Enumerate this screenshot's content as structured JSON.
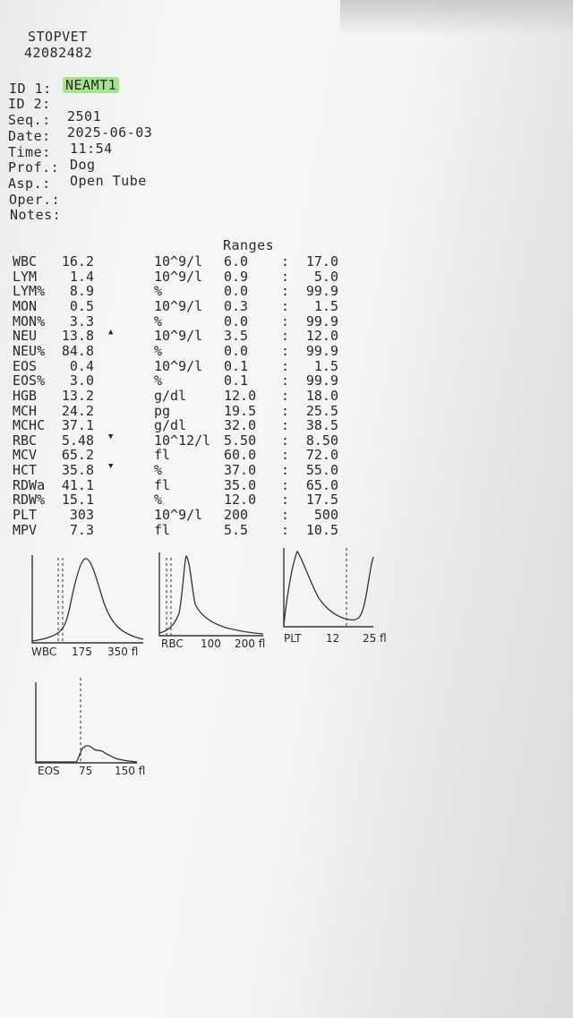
{
  "header": {
    "clinic": "STOPVET",
    "serial": "42082482"
  },
  "patient": [
    {
      "label": "ID 1:",
      "value": "NEAMT1"
    },
    {
      "label": "ID 2:",
      "value": ""
    },
    {
      "label": "Seq.:",
      "value": "2501"
    },
    {
      "label": "Date:",
      "value": "2025-06-03"
    },
    {
      "label": "Time:",
      "value": "11:54"
    },
    {
      "label": "Prof.:",
      "value": "Dog"
    },
    {
      "label": "Asp.:",
      "value": "Open Tube"
    },
    {
      "label": "Oper.:",
      "value": ""
    },
    {
      "label": "Notes:",
      "value": ""
    }
  ],
  "ranges_heading": "Ranges",
  "results": [
    {
      "param": "WBC",
      "value": "16.2",
      "flag": "",
      "unit": "10^9/l",
      "low": "6.0",
      "sep": ":",
      "high": "17.0"
    },
    {
      "param": "LYM",
      "value": "1.4",
      "flag": "",
      "unit": "10^9/l",
      "low": "0.9",
      "sep": ":",
      "high": "5.0"
    },
    {
      "param": "LYM%",
      "value": "8.9",
      "flag": "",
      "unit": "%",
      "low": "0.0",
      "sep": ":",
      "high": "99.9"
    },
    {
      "param": "MON",
      "value": "0.5",
      "flag": "",
      "unit": "10^9/l",
      "low": "0.3",
      "sep": ":",
      "high": "1.5"
    },
    {
      "param": "MON%",
      "value": "3.3",
      "flag": "",
      "unit": "%",
      "low": "0.0",
      "sep": ":",
      "high": "99.9"
    },
    {
      "param": "NEU",
      "value": "13.8",
      "flag": "▲",
      "unit": "10^9/l",
      "low": "3.5",
      "sep": ":",
      "high": "12.0"
    },
    {
      "param": "NEU%",
      "value": "84.8",
      "flag": "",
      "unit": "%",
      "low": "0.0",
      "sep": ":",
      "high": "99.9"
    },
    {
      "param": "EOS",
      "value": "0.4",
      "flag": "",
      "unit": "10^9/l",
      "low": "0.1",
      "sep": ":",
      "high": "1.5"
    },
    {
      "param": "EOS%",
      "value": "3.0",
      "flag": "",
      "unit": "%",
      "low": "0.1",
      "sep": ":",
      "high": "99.9"
    },
    {
      "param": "HGB",
      "value": "13.2",
      "flag": "",
      "unit": "g/dl",
      "low": "12.0",
      "sep": ":",
      "high": "18.0"
    },
    {
      "param": "MCH",
      "value": "24.2",
      "flag": "",
      "unit": "pg",
      "low": "19.5",
      "sep": ":",
      "high": "25.5"
    },
    {
      "param": "MCHC",
      "value": "37.1",
      "flag": "",
      "unit": "g/dl",
      "low": "32.0",
      "sep": ":",
      "high": "38.5"
    },
    {
      "param": "RBC",
      "value": "5.48",
      "flag": "▼",
      "unit": "10^12/l",
      "low": "5.50",
      "sep": ":",
      "high": "8.50"
    },
    {
      "param": "MCV",
      "value": "65.2",
      "flag": "",
      "unit": "fl",
      "low": "60.0",
      "sep": ":",
      "high": "72.0"
    },
    {
      "param": "HCT",
      "value": "35.8",
      "flag": "▼",
      "unit": "%",
      "low": "37.0",
      "sep": ":",
      "high": "55.0"
    },
    {
      "param": "RDWa",
      "value": "41.1",
      "flag": "",
      "unit": "fl",
      "low": "35.0",
      "sep": ":",
      "high": "65.0"
    },
    {
      "param": "RDW%",
      "value": "15.1",
      "flag": "",
      "unit": "%",
      "low": "12.0",
      "sep": ":",
      "high": "17.5"
    },
    {
      "param": "PLT",
      "value": "303",
      "flag": "",
      "unit": "10^9/l",
      "low": "200",
      "sep": ":",
      "high": "500"
    },
    {
      "param": "MPV",
      "value": "7.3",
      "flag": "",
      "unit": "fl",
      "low": "5.5",
      "sep": ":",
      "high": "10.5"
    }
  ],
  "histograms": [
    {
      "id": "wbc",
      "labels": [
        "WBC",
        "175",
        "350 fl"
      ]
    },
    {
      "id": "rbc",
      "labels": [
        "RBC",
        "100",
        "200 fl"
      ]
    },
    {
      "id": "plt",
      "labels": [
        "PLT",
        "12",
        "25 fl"
      ]
    },
    {
      "id": "eos",
      "labels": [
        "EOS",
        "75",
        "150 fl"
      ]
    }
  ]
}
